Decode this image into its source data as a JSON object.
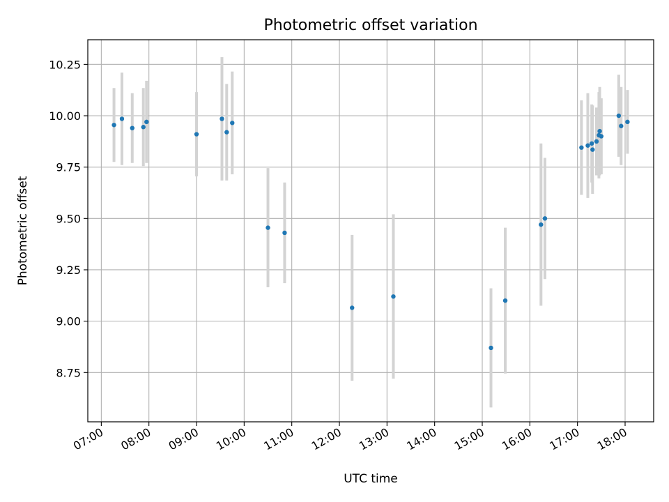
{
  "chart_data": {
    "type": "scatter",
    "title": "Photometric offset variation",
    "xlabel": "UTC time",
    "ylabel": "Photometric offset",
    "xlim": [
      "06:43",
      "18:36"
    ],
    "ylim": [
      8.51,
      10.37
    ],
    "x_ticks": [
      "07:00",
      "08:00",
      "09:00",
      "10:00",
      "11:00",
      "12:00",
      "13:00",
      "14:00",
      "15:00",
      "16:00",
      "17:00",
      "18:00"
    ],
    "y_ticks": [
      8.75,
      9.0,
      9.25,
      9.5,
      9.75,
      10.0,
      10.25
    ],
    "y_tick_labels": [
      "8.75",
      "9.00",
      "9.25",
      "9.50",
      "9.75",
      "10.00",
      "10.25"
    ],
    "grid": true,
    "marker_color": "#1f77b4",
    "errorbar_color": "#d3d3d3",
    "points": [
      {
        "x": "07:16",
        "y": 9.955,
        "err": 0.18
      },
      {
        "x": "07:26",
        "y": 9.985,
        "err": 0.225
      },
      {
        "x": "07:39",
        "y": 9.94,
        "err": 0.17
      },
      {
        "x": "07:53",
        "y": 9.945,
        "err": 0.19
      },
      {
        "x": "07:57",
        "y": 9.97,
        "err": 0.2
      },
      {
        "x": "09:00",
        "y": 9.91,
        "err": 0.205
      },
      {
        "x": "09:32",
        "y": 9.985,
        "err": 0.3
      },
      {
        "x": "09:38",
        "y": 9.92,
        "err": 0.235
      },
      {
        "x": "09:45",
        "y": 9.965,
        "err": 0.25
      },
      {
        "x": "10:30",
        "y": 9.455,
        "err": 0.29
      },
      {
        "x": "10:51",
        "y": 9.43,
        "err": 0.245
      },
      {
        "x": "12:16",
        "y": 9.065,
        "err": 0.355
      },
      {
        "x": "13:08",
        "y": 9.12,
        "err": 0.4
      },
      {
        "x": "15:11",
        "y": 8.87,
        "err": 0.29
      },
      {
        "x": "15:29",
        "y": 9.1,
        "err": 0.355
      },
      {
        "x": "16:14",
        "y": 9.47,
        "err": 0.395
      },
      {
        "x": "16:19",
        "y": 9.5,
        "err": 0.295
      },
      {
        "x": "17:05",
        "y": 9.845,
        "err": 0.23
      },
      {
        "x": "17:13",
        "y": 9.855,
        "err": 0.255
      },
      {
        "x": "17:18",
        "y": 9.865,
        "err": 0.19
      },
      {
        "x": "17:19",
        "y": 9.835,
        "err": 0.215
      },
      {
        "x": "17:24",
        "y": 9.875,
        "err": 0.165
      },
      {
        "x": "17:27",
        "y": 9.905,
        "err": 0.21
      },
      {
        "x": "17:28",
        "y": 9.925,
        "err": 0.215
      },
      {
        "x": "17:30",
        "y": 9.9,
        "err": 0.185
      },
      {
        "x": "17:52",
        "y": 10.0,
        "err": 0.2
      },
      {
        "x": "17:55",
        "y": 9.95,
        "err": 0.19
      },
      {
        "x": "18:03",
        "y": 9.97,
        "err": 0.155
      }
    ]
  }
}
